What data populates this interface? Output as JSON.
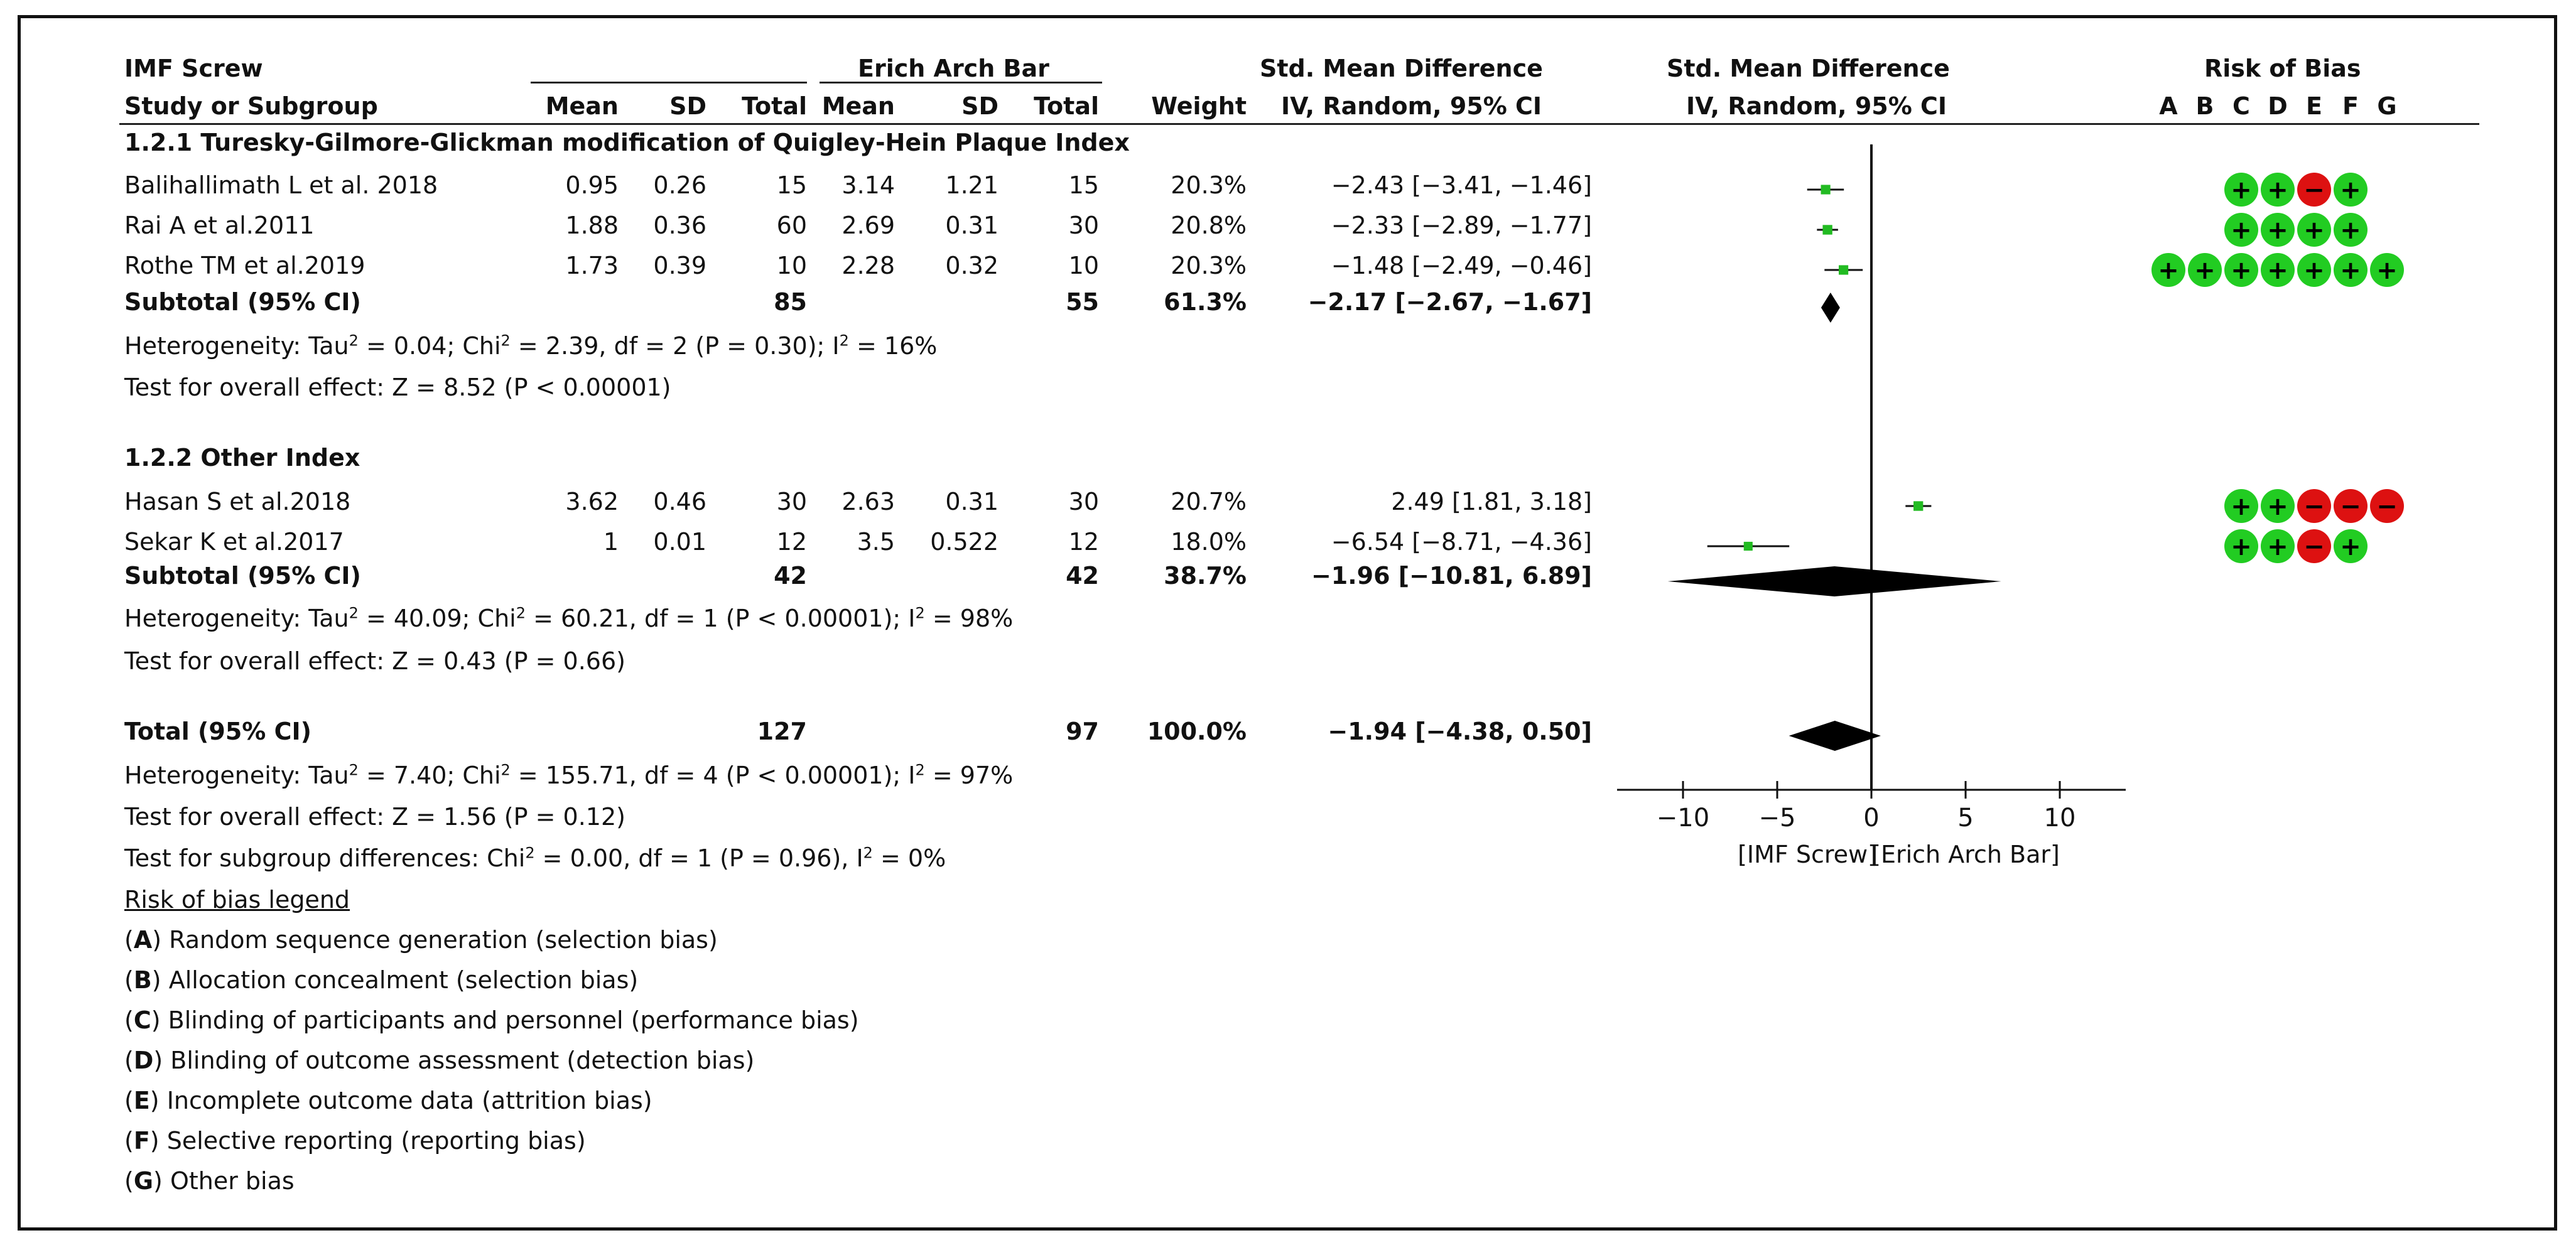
{
  "header": {
    "study_or_subgroup": "Study or Subgroup",
    "group1": "IMF Screw",
    "group2": "Erich Arch Bar",
    "mean": "Mean",
    "sd": "SD",
    "total": "Total",
    "weight": "Weight",
    "smd_title": "Std. Mean Difference",
    "smd_method": "IV, Random, 95% CI",
    "plot_title": "Std. Mean Difference",
    "plot_method": "IV, Random, 95% CI",
    "rob_title": "Risk of Bias",
    "rob_letters": [
      "A",
      "B",
      "C",
      "D",
      "E",
      "F",
      "G"
    ]
  },
  "subgroups": [
    {
      "title": "1.2.1 Turesky-Gilmore-Glickman modification of Quigley-Hein Plaque Index",
      "studies": [
        {
          "name": "Balihallimath L et al. 2018",
          "m1": "0.95",
          "sd1": "0.26",
          "n1": "15",
          "m2": "3.14",
          "sd2": "1.21",
          "n2": "15",
          "weight": "20.3%",
          "ci": "−2.43 [−3.41, −1.46]"
        },
        {
          "name": "Rai A et al.2011",
          "m1": "1.88",
          "sd1": "0.36",
          "n1": "60",
          "m2": "2.69",
          "sd2": "0.31",
          "n2": "30",
          "weight": "20.8%",
          "ci": "−2.33 [−2.89, −1.77]"
        },
        {
          "name": "Rothe TM et al.2019",
          "m1": "1.73",
          "sd1": "0.39",
          "n1": "10",
          "m2": "2.28",
          "sd2": "0.32",
          "n2": "10",
          "weight": "20.3%",
          "ci": "−1.48 [−2.49, −0.46]"
        }
      ],
      "subtotal": {
        "label": "Subtotal (95% CI)",
        "n1": "85",
        "n2": "55",
        "weight": "61.3%",
        "ci": "−2.17 [−2.67, −1.67]"
      },
      "heterogeneity": "Heterogeneity: Tau² = 0.04; Chi² = 2.39, df = 2 (P = 0.30); I² = 16%",
      "overall": "Test for overall effect: Z = 8.52 (P < 0.00001)"
    },
    {
      "title": "1.2.2 Other Index",
      "studies": [
        {
          "name": "Hasan S et al.2018",
          "m1": "3.62",
          "sd1": "0.46",
          "n1": "30",
          "m2": "2.63",
          "sd2": "0.31",
          "n2": "30",
          "weight": "20.7%",
          "ci": "2.49 [1.81, 3.18]"
        },
        {
          "name": "Sekar K et al.2017",
          "m1": "1",
          "sd1": "0.01",
          "n1": "12",
          "m2": "3.5",
          "sd2": "0.522",
          "n2": "12",
          "weight": "18.0%",
          "ci": "−6.54 [−8.71, −4.36]"
        }
      ],
      "subtotal": {
        "label": "Subtotal (95% CI)",
        "n1": "42",
        "n2": "42",
        "weight": "38.7%",
        "ci": "−1.96 [−10.81, 6.89]"
      },
      "heterogeneity": "Heterogeneity: Tau² = 40.09; Chi² = 60.21, df = 1 (P < 0.00001); I² = 98%",
      "overall": "Test for overall effect: Z = 0.43 (P = 0.66)"
    }
  ],
  "total": {
    "label": "Total (95% CI)",
    "n1": "127",
    "n2": "97",
    "weight": "100.0%",
    "ci": "−1.94 [−4.38, 0.50]",
    "heterogeneity": "Heterogeneity: Tau² = 7.40; Chi² = 155.71, df = 4 (P < 0.00001); I² = 97%",
    "overall": "Test for overall effect: Z = 1.56 (P = 0.12)",
    "subgroup_diff": "Test for subgroup differences: Chi² = 0.00, df = 1 (P = 0.96), I² = 0%"
  },
  "legend": {
    "title": "Risk of bias legend",
    "items": [
      {
        "key": "A",
        "text": "Random sequence generation (selection bias)"
      },
      {
        "key": "B",
        "text": "Allocation concealment (selection bias)"
      },
      {
        "key": "C",
        "text": "Blinding of participants and personnel (performance bias)"
      },
      {
        "key": "D",
        "text": "Blinding of outcome assessment (detection bias)"
      },
      {
        "key": "E",
        "text": "Incomplete outcome data (attrition bias)"
      },
      {
        "key": "F",
        "text": "Selective reporting (reporting bias)"
      },
      {
        "key": "G",
        "text": "Other bias"
      }
    ]
  },
  "colors": {
    "low_risk": "#22cc22",
    "high_risk": "#dd1111",
    "point": "#22bb22",
    "line": "#111111"
  },
  "chart_data": {
    "type": "forest",
    "title": "Std. Mean Difference IV, Random, 95% CI",
    "x_ticks": [
      -10,
      -5,
      0,
      5,
      10
    ],
    "x_tick_labels": [
      "−10",
      "−5",
      "0",
      "5",
      "10"
    ],
    "xlim": [
      -13.5,
      13.5
    ],
    "xlabel_left": "[IMF Screw]",
    "xlabel_right": "[Erich Arch Bar]",
    "studies": [
      {
        "name": "Balihallimath L et al. 2018",
        "est": -2.43,
        "lo": -3.41,
        "hi": -1.46,
        "weight": 20.3
      },
      {
        "name": "Rai A et al.2011",
        "est": -2.33,
        "lo": -2.89,
        "hi": -1.77,
        "weight": 20.8
      },
      {
        "name": "Rothe TM et al.2019",
        "est": -1.48,
        "lo": -2.49,
        "hi": -0.46,
        "weight": 20.3
      },
      {
        "name": "Hasan S et al.2018",
        "est": 2.49,
        "lo": 1.81,
        "hi": 3.18,
        "weight": 20.7
      },
      {
        "name": "Sekar K et al.2017",
        "est": -6.54,
        "lo": -8.71,
        "hi": -4.36,
        "weight": 18.0
      }
    ],
    "summaries": [
      {
        "name": "Subtotal 1.2.1",
        "est": -2.17,
        "lo": -2.67,
        "hi": -1.67
      },
      {
        "name": "Subtotal 1.2.2",
        "est": -1.96,
        "lo": -10.81,
        "hi": 6.89
      },
      {
        "name": "Total",
        "est": -1.94,
        "lo": -4.38,
        "hi": 0.5
      }
    ],
    "risk_of_bias": [
      {
        "study": "Balihallimath L et al. 2018",
        "ratings": [
          "",
          "",
          "+",
          "+",
          "-",
          "+",
          ""
        ]
      },
      {
        "study": "Rai A et al.2011",
        "ratings": [
          "",
          "",
          "+",
          "+",
          "+",
          "+",
          ""
        ]
      },
      {
        "study": "Rothe TM et al.2019",
        "ratings": [
          "+",
          "+",
          "+",
          "+",
          "+",
          "+",
          "+"
        ]
      },
      {
        "study": "Hasan S et al.2018",
        "ratings": [
          "",
          "",
          "+",
          "+",
          "-",
          "-",
          "-"
        ]
      },
      {
        "study": "Sekar K et al.2017",
        "ratings": [
          "",
          "",
          "+",
          "+",
          "-",
          "+",
          ""
        ]
      }
    ]
  }
}
